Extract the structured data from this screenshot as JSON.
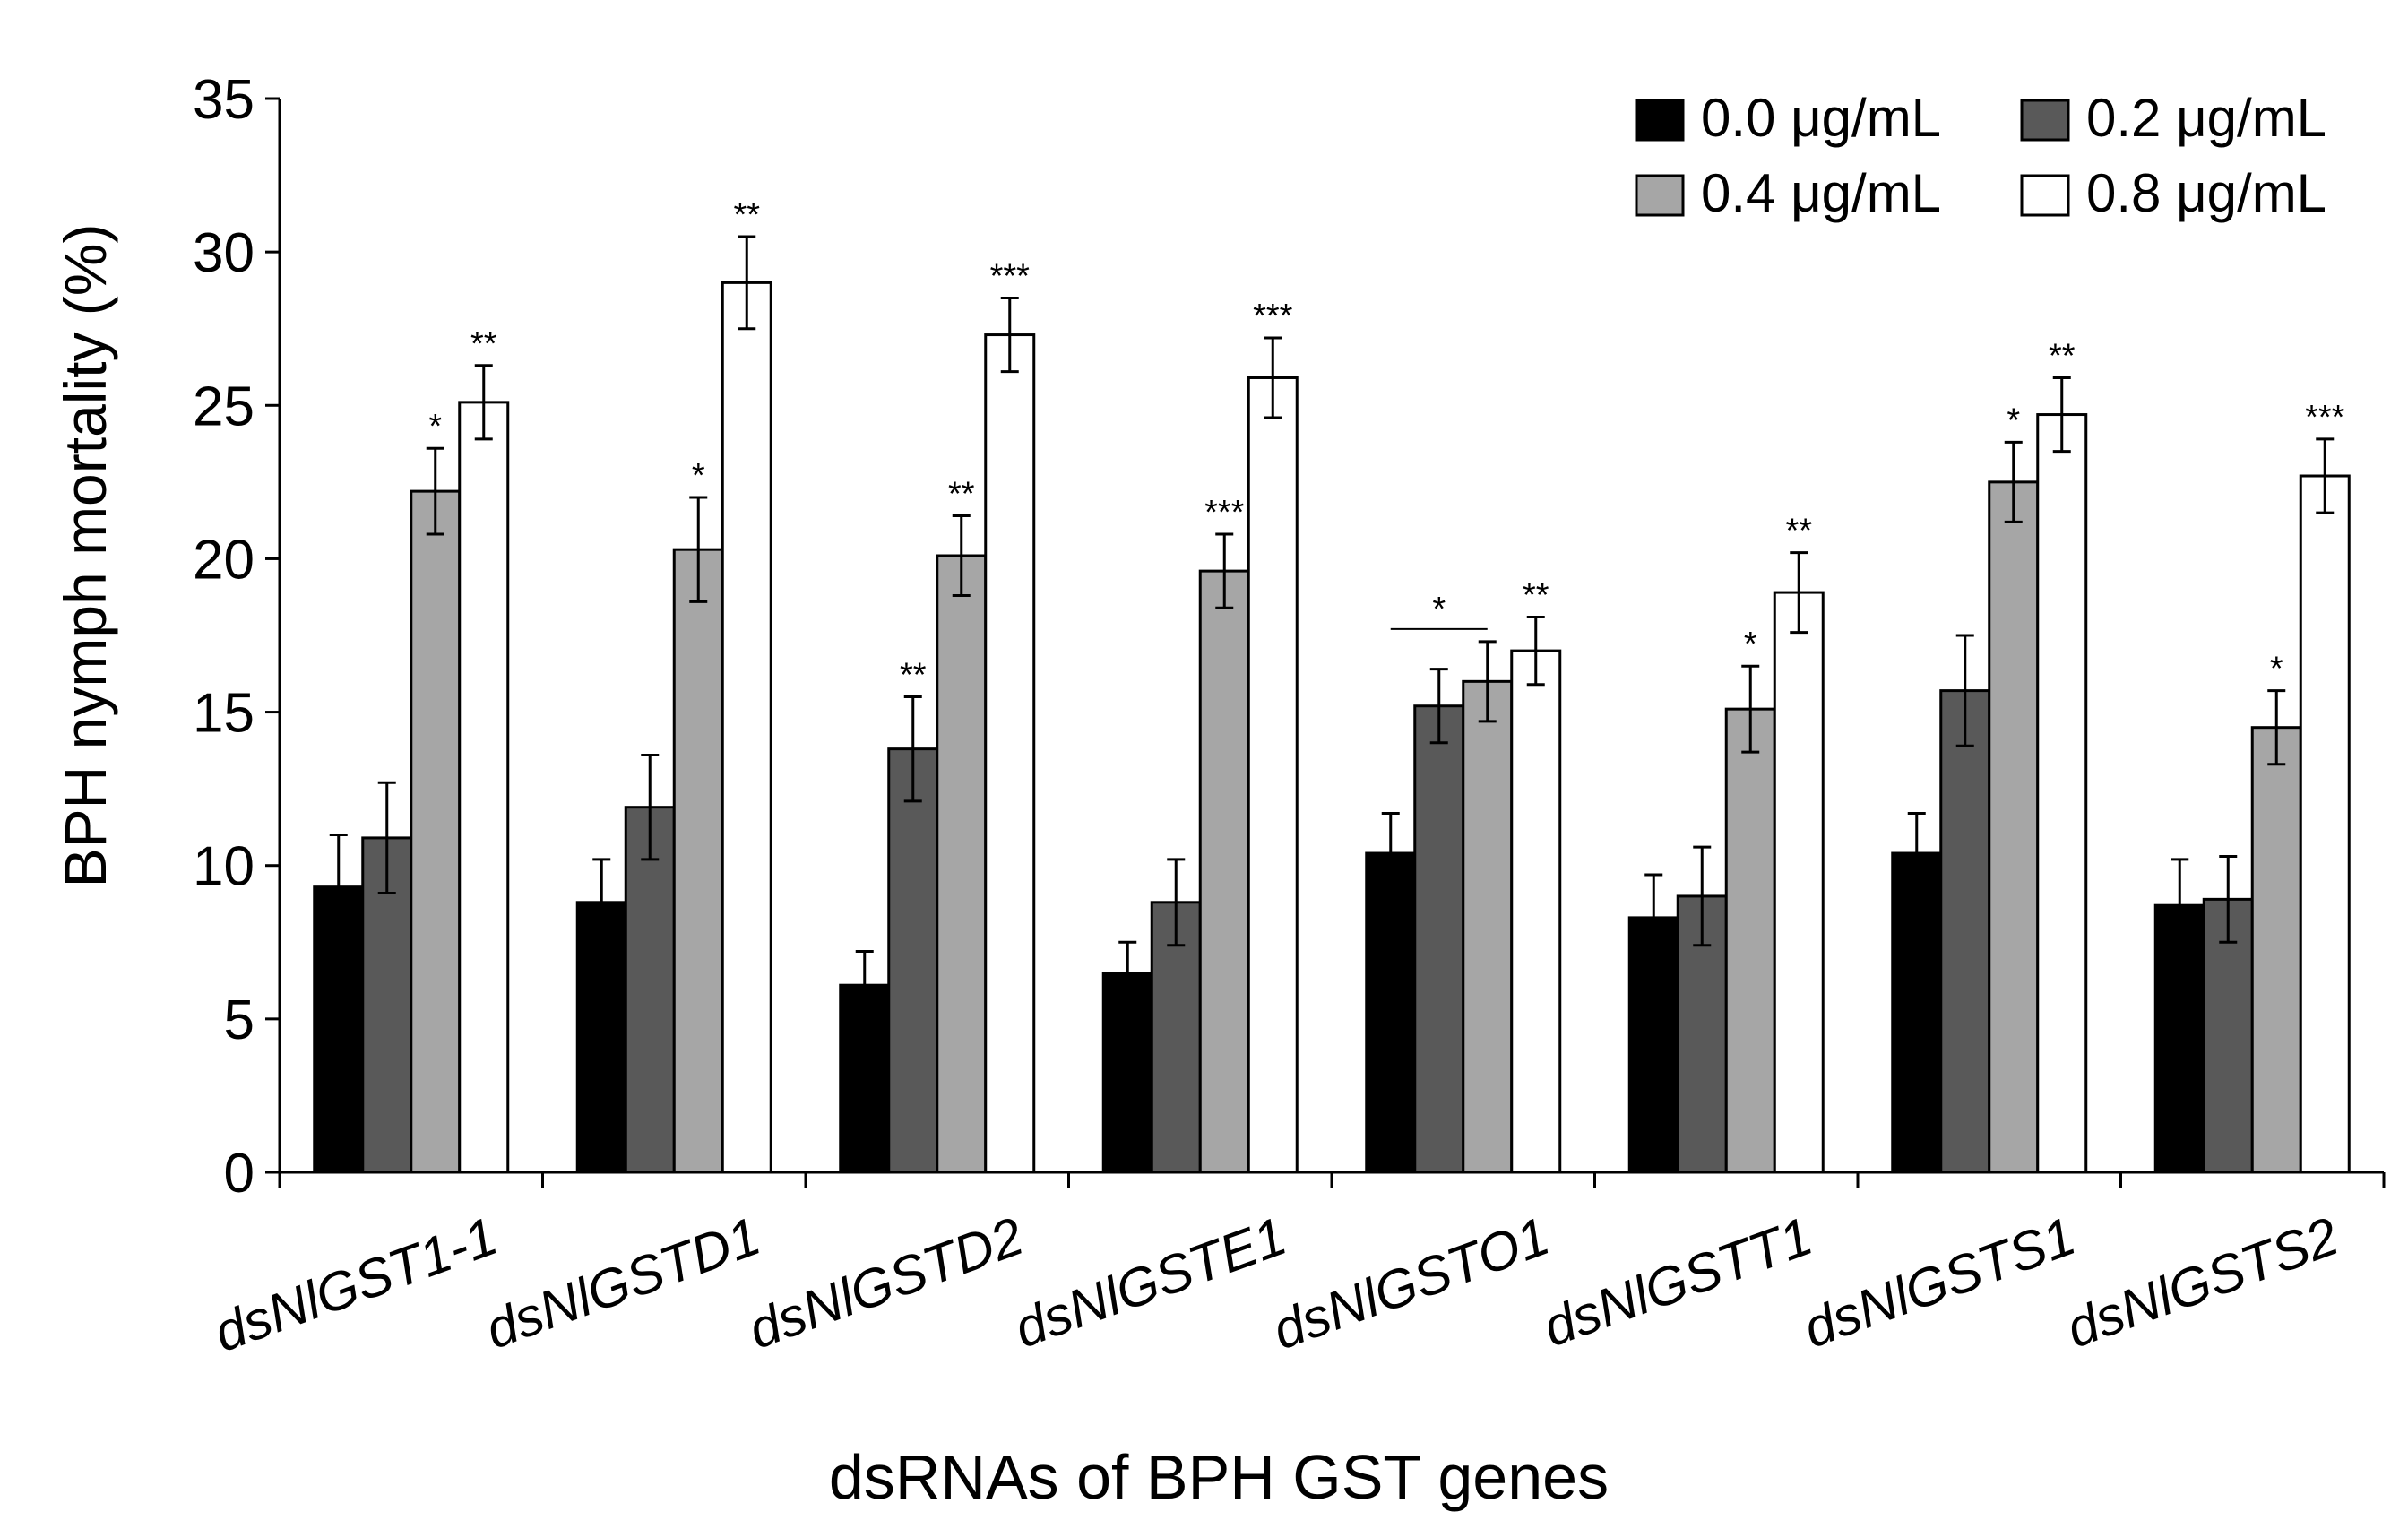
{
  "chart_data": {
    "type": "bar",
    "title": "",
    "xlabel": "dsRNAs of BPH GST genes",
    "ylabel": "BPH nymph mortality (%)",
    "ylim": [
      0,
      35
    ],
    "yticks": [
      "0",
      "5",
      "10",
      "15",
      "20",
      "25",
      "30",
      "35"
    ],
    "ytick_values": [
      0,
      5,
      10,
      15,
      20,
      25,
      30,
      35
    ],
    "grid": false,
    "legend_position": "top-right",
    "categories": [
      "dsNlGST1-1",
      "dsNlGSTD1",
      "dsNlGSTD2",
      "dsNlGSTE1",
      "dsNlGSTO1",
      "dsNlGSTT1",
      "dsNlGSTS1",
      "dsNlGSTS2"
    ],
    "series": [
      {
        "name": "0.0 μg/mL",
        "color": "#000000",
        "values": [
          9.3,
          8.8,
          6.1,
          6.5,
          10.4,
          8.3,
          10.4,
          8.7
        ],
        "errors": [
          1.7,
          1.4,
          1.1,
          1.0,
          1.3,
          1.4,
          1.3,
          1.5
        ],
        "significance": [
          "",
          "",
          "",
          "",
          "",
          "",
          "",
          ""
        ]
      },
      {
        "name": "0.2 μg/mL",
        "color": "#595959",
        "values": [
          10.9,
          11.9,
          13.8,
          8.8,
          15.2,
          9.0,
          15.7,
          8.9
        ],
        "errors": [
          1.8,
          1.7,
          1.7,
          1.4,
          1.2,
          1.6,
          1.8,
          1.4
        ],
        "significance": [
          "",
          "",
          "**",
          "",
          "",
          "",
          "",
          ""
        ]
      },
      {
        "name": "0.4 μg/mL",
        "color": "#a6a6a6",
        "values": [
          22.2,
          20.3,
          20.1,
          19.6,
          16.0,
          15.1,
          22.5,
          14.5
        ],
        "errors": [
          1.4,
          1.7,
          1.3,
          1.2,
          1.3,
          1.4,
          1.3,
          1.2
        ],
        "significance": [
          "*",
          "*",
          "**",
          "***",
          "",
          "*",
          "*",
          "*"
        ]
      },
      {
        "name": "0.8 μg/mL",
        "color": "#ffffff",
        "values": [
          25.1,
          29.0,
          27.3,
          25.9,
          17.0,
          18.9,
          24.7,
          22.7
        ],
        "errors": [
          1.2,
          1.5,
          1.2,
          1.3,
          1.1,
          1.3,
          1.2,
          1.2
        ],
        "significance": [
          "**",
          "**",
          "***",
          "***",
          "**",
          "**",
          "**",
          "***"
        ]
      }
    ],
    "annotations": [
      {
        "text": "*",
        "type": "bracket",
        "category": "dsNlGSTO1",
        "from_series": 0,
        "to_series": 2
      }
    ]
  }
}
